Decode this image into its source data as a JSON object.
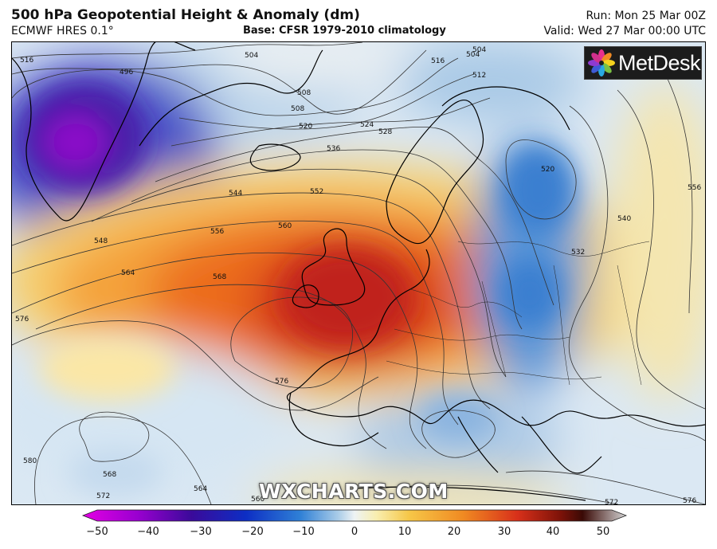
{
  "header": {
    "title": "500 hPa Geopotential Height & Anomaly (dm)",
    "model": "ECMWF HRES 0.1°",
    "base": "Base: CFSR 1979-2010 climatology",
    "run": "Run: Mon 25 Mar 00Z",
    "valid": "Valid: Wed 27 Mar 00:00 UTC"
  },
  "logo": {
    "text": "MetDesk",
    "icon": "metdesk-flower-icon"
  },
  "watermark": "WXCHARTS.COM",
  "map": {
    "projection": "Europe / North Atlantic",
    "contour_labels": [
      "516",
      "504",
      "496",
      "504",
      "508",
      "520",
      "524",
      "528",
      "516",
      "504",
      "508",
      "512",
      "536",
      "544",
      "552",
      "520",
      "556",
      "560",
      "548",
      "564",
      "568",
      "540",
      "556",
      "532",
      "576",
      "576",
      "580",
      "568",
      "572",
      "564",
      "560",
      "572",
      "576"
    ],
    "anomaly_centres": [
      {
        "name": "low-greenland",
        "anomaly": -35
      },
      {
        "name": "ridge-british-isles",
        "anomaly": 30
      },
      {
        "name": "trough-eastern-europe",
        "anomaly": -20
      },
      {
        "name": "low-mediterranean",
        "anomaly": -10
      },
      {
        "name": "low-atlantic",
        "anomaly": -10
      }
    ]
  },
  "colorbar": {
    "ticks": [
      "−50",
      "−40",
      "−30",
      "−20",
      "−10",
      "0",
      "10",
      "20",
      "30",
      "40",
      "50"
    ],
    "colors": [
      "#e000e0",
      "#6a00b8",
      "#22008a",
      "#0d28c8",
      "#3a88d8",
      "#c8dcee",
      "#f6f2b4",
      "#f5b52e",
      "#e8581a",
      "#7a1208",
      "#cfcfcf"
    ]
  }
}
